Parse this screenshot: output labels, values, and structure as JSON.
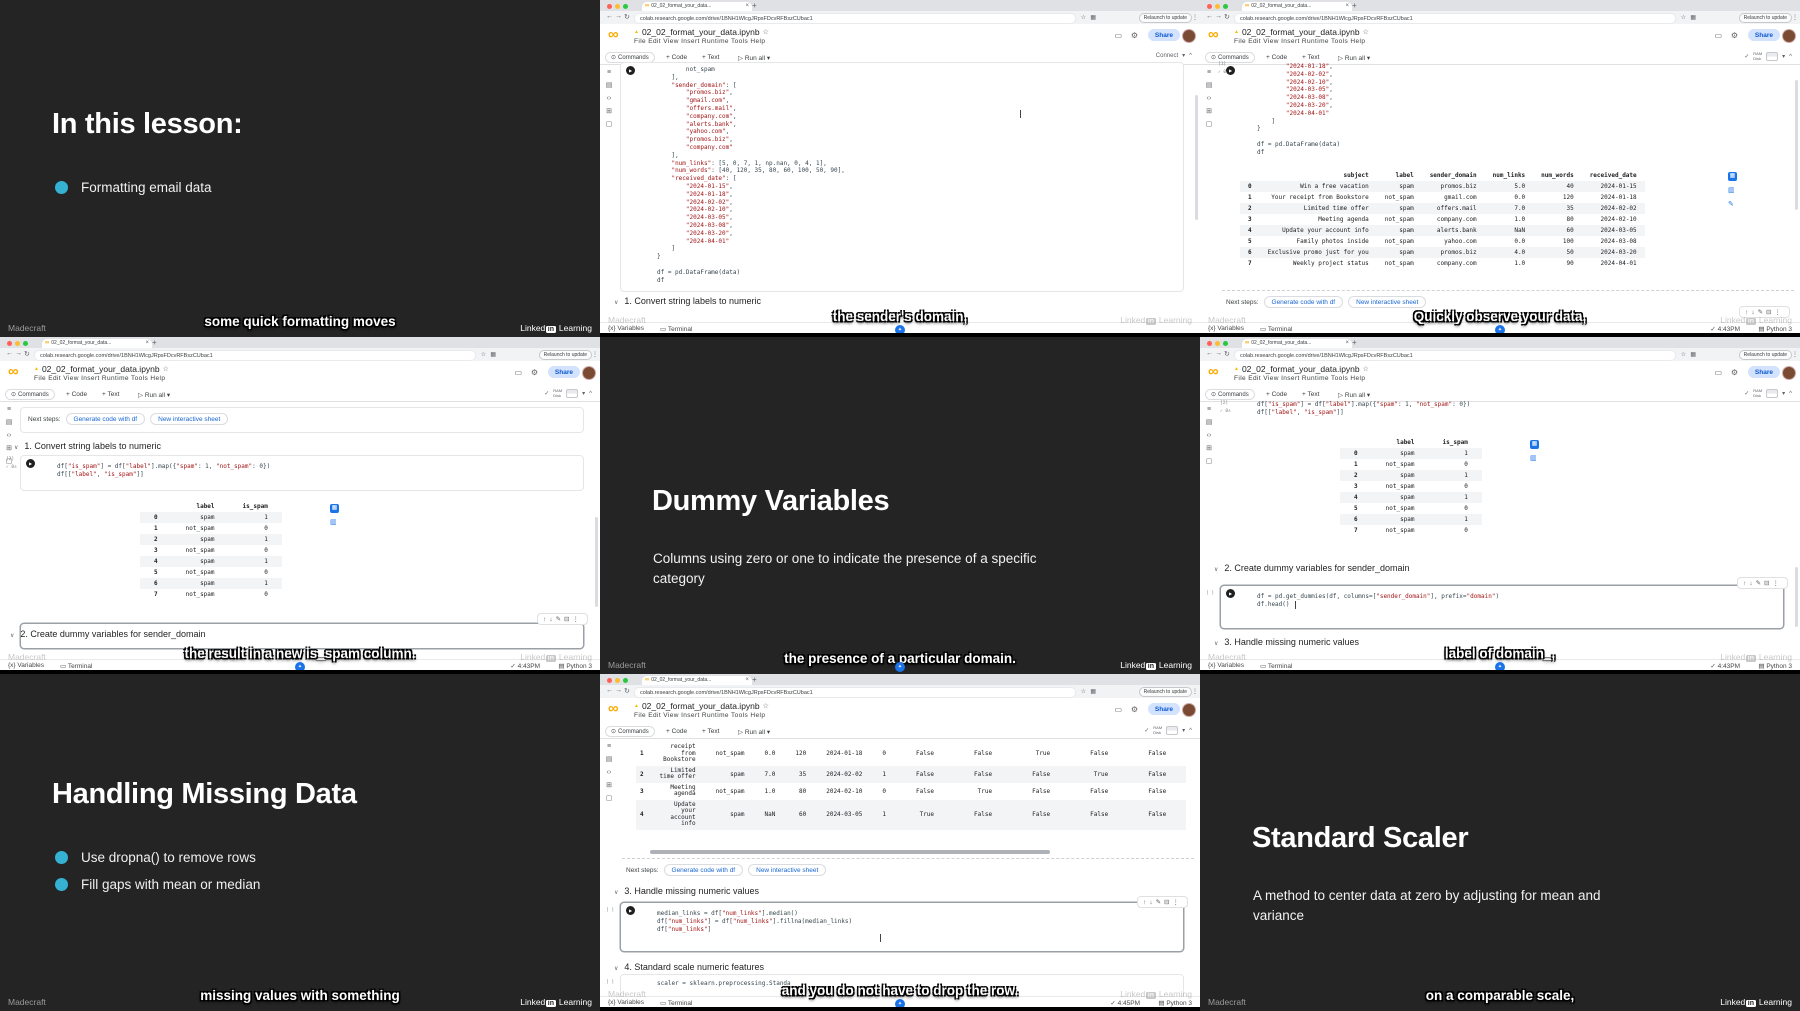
{
  "icons": {
    "infinity": "∞",
    "back": "←",
    "fwd": "→",
    "reload": "↻",
    "star": "☆",
    "grid": "▦",
    "kebab": "⋮",
    "gear": "⚙",
    "comment": "▭",
    "drive": "▲",
    "search": "⊙",
    "runall": "▷",
    "chevdown": "▾",
    "collapse": "^",
    "check": "✓",
    "run": "▶",
    "up": "↑",
    "down": "↓",
    "edit": "✎",
    "trash": "⊟",
    "more": "⋮",
    "menu": "≡",
    "doc": "▤",
    "codetag": "‹›",
    "vars": "⊞",
    "folder": "▢",
    "table": "▦",
    "chart": "▥",
    "pencil": "✎",
    "sparkle": "✦",
    "varsbrace": "{x}",
    "terminal": "▭",
    "python": "▤",
    "sect": "∨"
  },
  "chrome": {
    "tab_title": "02_02_format_your_data...",
    "close_tab": "×",
    "new_tab": "+",
    "url": "colab.research.google.com/drive/1BNH1WlcgJRpsFDcvRFBszCUbac1",
    "relaunch": "Relaunch to update",
    "notebook_title": "02_02_format_your_data.ipynb",
    "menu": "File   Edit   View   Insert   Runtime   Tools   Help",
    "commands": "Commands",
    "add_code": "+ Code",
    "add_text": "+ Text",
    "run_all": "Run all",
    "connect": "Connect",
    "ram": "RAM",
    "disk": "Disk",
    "share": "Share",
    "variables": "Variables",
    "terminal": "Terminal",
    "python": "Python 3",
    "next_steps": "Next steps:",
    "chip_generate": "Generate code with df",
    "chip_sheet": "New interactive sheet",
    "gutter_check": "✓ 0s"
  },
  "brand": {
    "madecraft": "Madecraft",
    "linked": "Linked",
    "in": "in",
    "learning": "Learning"
  },
  "sections": {
    "s1": "1. Convert string labels to numeric",
    "s2": "2. Create dummy variables for sender_domain",
    "s3": "3. Handle missing numeric values",
    "s4": "4. Standard scale numeric features"
  },
  "snippets": {
    "data_tail": [
      "        not_spam",
      "    ],",
      "    \"sender_domain\": [",
      "        \"promos.biz\",",
      "        \"gmail.com\",",
      "        \"offers.mail\",",
      "        \"company.com\",",
      "        \"alerts.bank\",",
      "        \"yahoo.com\",",
      "        \"promos.biz\",",
      "        \"company.com\"",
      "    ],",
      "    \"num_links\": [5, 0, 7, 1, np.nan, 0, 4, 1],",
      "    \"num_words\": [40, 120, 35, 80, 60, 100, 50, 90],",
      "    \"received_date\": [",
      "        \"2024-01-15\",",
      "        \"2024-01-18\",",
      "        \"2024-02-02\",",
      "        \"2024-02-10\",",
      "        \"2024-03-05\",",
      "        \"2024-03-08\",",
      "        \"2024-03-20\",",
      "        \"2024-04-01\"",
      "    ]",
      "}",
      "",
      "df = pd.DataFrame(data)",
      "df"
    ],
    "dates_tail": [
      "        \"2024-01-18\",",
      "        \"2024-02-02\",",
      "        \"2024-02-10\",",
      "        \"2024-03-05\",",
      "        \"2024-03-08\",",
      "        \"2024-03-20\",",
      "        \"2024-04-01\"",
      "    ]",
      "}",
      "",
      "df = pd.DataFrame(data)",
      "df"
    ],
    "map": [
      "df[\"is_spam\"] = df[\"label\"].map({\"spam\": 1, \"not_spam\": 0})",
      "df[[\"label\", \"is_spam\"]]"
    ],
    "dummies": [
      "df = pd.get_dummies(df, columns=[\"sender_domain\"], prefix=\"domain\")",
      "df.head()"
    ],
    "median": [
      "median_links = df[\"num_links\"].median()",
      "df[\"num_links\"] = df[\"num_links\"].fillna(median_links)",
      "df[\"num_links\"]"
    ],
    "scaler": [
      "scaler = sklearn.preprocessing.Standa"
    ]
  },
  "tables": {
    "df_full": {
      "headers": [
        "",
        "subject",
        "label",
        "sender_domain",
        "num_links",
        "num_words",
        "received_date"
      ],
      "rows": [
        [
          "0",
          "Win a free vacation",
          "spam",
          "promos.biz",
          "5.0",
          "40",
          "2024-01-15"
        ],
        [
          "1",
          "Your receipt from Bookstore",
          "not_spam",
          "gmail.com",
          "0.0",
          "120",
          "2024-01-18"
        ],
        [
          "2",
          "Limited time offer",
          "spam",
          "offers.mail",
          "7.0",
          "35",
          "2024-02-02"
        ],
        [
          "3",
          "Meeting agenda",
          "not_spam",
          "company.com",
          "1.0",
          "80",
          "2024-02-10"
        ],
        [
          "4",
          "Update your account info",
          "spam",
          "alerts.bank",
          "NaN",
          "60",
          "2024-03-05"
        ],
        [
          "5",
          "Family photos inside",
          "not_spam",
          "yahoo.com",
          "0.0",
          "100",
          "2024-03-08"
        ],
        [
          "6",
          "Exclusive promo just for you",
          "spam",
          "promos.biz",
          "4.0",
          "50",
          "2024-03-20"
        ],
        [
          "7",
          "Weekly project status",
          "not_spam",
          "company.com",
          "1.0",
          "90",
          "2024-04-01"
        ]
      ]
    },
    "spam": {
      "headers": [
        "",
        "label",
        "is_spam"
      ],
      "rows": [
        [
          "0",
          "spam",
          "1"
        ],
        [
          "1",
          "not_spam",
          "0"
        ],
        [
          "2",
          "spam",
          "1"
        ],
        [
          "3",
          "not_spam",
          "0"
        ],
        [
          "4",
          "spam",
          "1"
        ],
        [
          "5",
          "not_spam",
          "0"
        ],
        [
          "6",
          "spam",
          "1"
        ],
        [
          "7",
          "not_spam",
          "0"
        ]
      ]
    },
    "wide": {
      "rows": [
        [
          "1",
          "receipt from Bookstore",
          "not_spam",
          "0.0",
          "120",
          "2024-01-18",
          "0",
          "False",
          "False",
          "True",
          "False",
          "False"
        ],
        [
          "2",
          "Limited time offer",
          "spam",
          "7.0",
          "35",
          "2024-02-02",
          "1",
          "False",
          "False",
          "False",
          "True",
          "False"
        ],
        [
          "3",
          "Meeting agenda",
          "not_spam",
          "1.0",
          "80",
          "2024-02-10",
          "0",
          "False",
          "True",
          "False",
          "False",
          "False"
        ],
        [
          "4",
          "Update your account info",
          "spam",
          "NaN",
          "60",
          "2024-03-05",
          "1",
          "True",
          "False",
          "False",
          "False",
          "False"
        ]
      ]
    }
  },
  "slides": {
    "lesson": {
      "title": "In this lesson:",
      "bullets": [
        "Formatting email data"
      ],
      "caption": "some quick formatting moves"
    },
    "dummy": {
      "title": "Dummy Variables",
      "subtitle": "Columns using zero or one to indicate the presence of a specific category",
      "caption": "the presence of a particular domain."
    },
    "missing": {
      "title": "Handling Missing Data",
      "bullets": [
        "Use dropna() to remove rows",
        "Fill gaps with mean or median"
      ],
      "caption": "missing values with something"
    },
    "scaler": {
      "title": "Standard Scaler",
      "subtitle": "A method to center data at zero by adjusting for mean and variance",
      "caption": "on a comparable scale,"
    }
  },
  "frames": {
    "f2": {
      "caption": "the sender's domain,"
    },
    "f3": {
      "caption": "Quickly observe your data,",
      "time": "4:43PM",
      "gutter": "[1]"
    },
    "f4": {
      "caption": "the result in a new is_spam column.",
      "time": "4:43PM",
      "gutter": "[2]"
    },
    "f6": {
      "caption": "label of domain_,",
      "time": "4:43PM",
      "gutter": "[2]",
      "gutter2": "[ ]"
    },
    "f8": {
      "caption": "and you do not have to drop the row.",
      "time": "4:45PM",
      "gutter": "[ ]",
      "gutter2": "[ ]"
    }
  }
}
